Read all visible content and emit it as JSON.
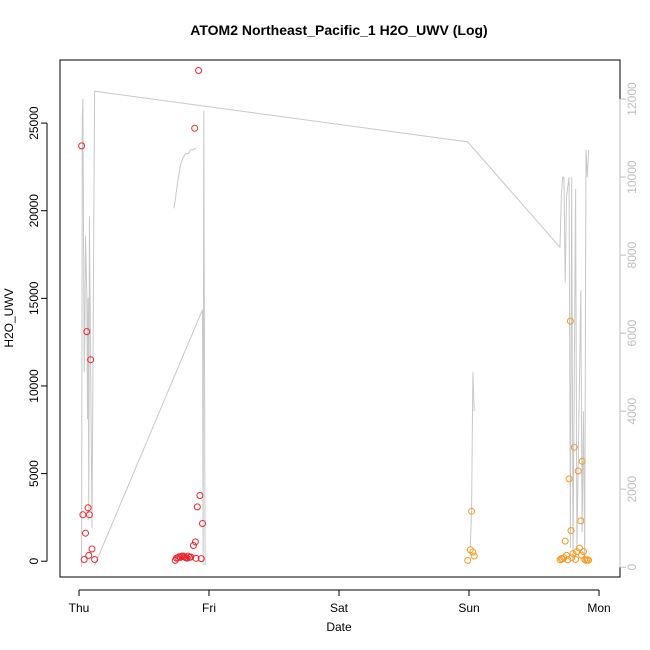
{
  "chart_data": {
    "type": "scatter",
    "title": "ATOM2 Northeast_Pacific_1 H2O_UWV (Log)",
    "xlabel": "Date",
    "ylabel": "H2O_UWV",
    "x_ticks": [
      "Thu",
      "Fri",
      "Sat",
      "Sun",
      "Mon"
    ],
    "ylim": [
      -900,
      28600
    ],
    "y_ticks": [
      0,
      5000,
      10000,
      15000,
      20000,
      25000
    ],
    "y2lim": [
      -250,
      13000
    ],
    "y2_ticks": [
      0,
      2000,
      4000,
      6000,
      8000,
      10000,
      12000
    ],
    "colors": {
      "red": "#e8282e",
      "orange": "#f59a23",
      "line": "#c8c8c8",
      "right_axis": "#bebebe"
    },
    "series_red": [
      [
        0.02,
        23700
      ],
      [
        0.03,
        2650
      ],
      [
        0.04,
        100
      ],
      [
        0.05,
        1600
      ],
      [
        0.06,
        13100
      ],
      [
        0.07,
        3050
      ],
      [
        0.075,
        330
      ],
      [
        0.08,
        2650
      ],
      [
        0.09,
        11500
      ],
      [
        0.1,
        700
      ],
      [
        0.12,
        100
      ],
      [
        0.74,
        50
      ],
      [
        0.75,
        180
      ],
      [
        0.76,
        200
      ],
      [
        0.77,
        260
      ],
      [
        0.78,
        220
      ],
      [
        0.79,
        280
      ],
      [
        0.8,
        300
      ],
      [
        0.81,
        250
      ],
      [
        0.82,
        200
      ],
      [
        0.83,
        180
      ],
      [
        0.84,
        290
      ],
      [
        0.85,
        220
      ],
      [
        0.86,
        240
      ],
      [
        0.88,
        900
      ],
      [
        0.89,
        24700
      ],
      [
        0.895,
        1100
      ],
      [
        0.9,
        160
      ],
      [
        0.91,
        3100
      ],
      [
        0.92,
        28000
      ],
      [
        0.93,
        3750
      ],
      [
        0.94,
        150
      ],
      [
        0.95,
        2150
      ]
    ],
    "series_orange": [
      [
        2.99,
        50
      ],
      [
        3.01,
        650
      ],
      [
        3.02,
        2850
      ],
      [
        3.03,
        520
      ],
      [
        3.04,
        300
      ],
      [
        3.7,
        80
      ],
      [
        3.71,
        150
      ],
      [
        3.72,
        120
      ],
      [
        3.73,
        200
      ],
      [
        3.74,
        1150
      ],
      [
        3.75,
        330
      ],
      [
        3.76,
        80
      ],
      [
        3.77,
        4700
      ],
      [
        3.78,
        13700
      ],
      [
        3.785,
        1750
      ],
      [
        3.79,
        200
      ],
      [
        3.8,
        430
      ],
      [
        3.81,
        6500
      ],
      [
        3.82,
        100
      ],
      [
        3.83,
        550
      ],
      [
        3.84,
        5150
      ],
      [
        3.85,
        750
      ],
      [
        3.86,
        2300
      ],
      [
        3.865,
        350
      ],
      [
        3.87,
        5700
      ],
      [
        3.88,
        550
      ],
      [
        3.89,
        100
      ],
      [
        3.9,
        50
      ],
      [
        3.91,
        80
      ],
      [
        3.92,
        60
      ]
    ],
    "line_series": [
      [
        0.02,
        10
      ],
      [
        0.025,
        11500
      ],
      [
        0.03,
        12000
      ],
      [
        0.04,
        5000
      ],
      [
        0.045,
        6000
      ],
      [
        0.05,
        8500
      ],
      [
        0.06,
        7000
      ],
      [
        0.065,
        3800
      ],
      [
        0.07,
        6900
      ],
      [
        0.075,
        1200
      ],
      [
        0.08,
        9000
      ],
      [
        0.1,
        1000
      ],
      [
        0.12,
        12200
      ],
      [
        2.99,
        10900
      ],
      [
        3.7,
        8200
      ],
      [
        3.71,
        9500
      ],
      [
        3.72,
        10000
      ],
      [
        3.73,
        10000
      ],
      [
        3.74,
        7300
      ],
      [
        3.75,
        9500
      ],
      [
        3.77,
        10000
      ],
      [
        3.78,
        500
      ],
      [
        3.79,
        10000
      ],
      [
        3.8,
        200
      ],
      [
        3.82,
        9700
      ],
      [
        3.83,
        400
      ],
      [
        3.86,
        7100
      ],
      [
        3.87,
        900
      ],
      [
        3.88,
        4000
      ],
      [
        3.89,
        200
      ],
      [
        3.9,
        10700
      ],
      [
        3.91,
        10000
      ],
      [
        3.92,
        10700
      ]
    ],
    "line_series_2": [
      [
        0.73,
        9200
      ],
      [
        0.74,
        9400
      ],
      [
        0.76,
        9900
      ],
      [
        0.78,
        10300
      ],
      [
        0.8,
        10500
      ],
      [
        0.82,
        10600
      ],
      [
        0.84,
        10600
      ],
      [
        0.86,
        10700
      ],
      [
        0.88,
        10700
      ],
      [
        0.9,
        10750
      ]
    ],
    "line_series_3": [
      [
        0.12,
        50
      ],
      [
        0.95,
        6600
      ],
      [
        0.955,
        50
      ],
      [
        0.96,
        11700
      ],
      [
        0.97,
        50
      ]
    ],
    "line_series_4": [
      [
        3.01,
        500
      ],
      [
        3.02,
        1500
      ],
      [
        3.03,
        5000
      ],
      [
        3.04,
        4000
      ]
    ]
  }
}
